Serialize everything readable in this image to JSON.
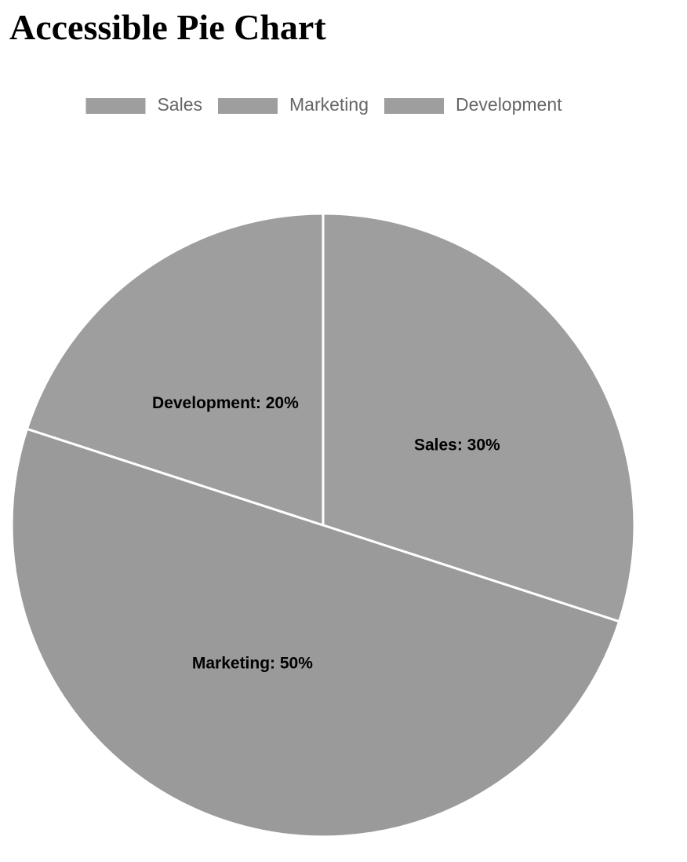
{
  "page": {
    "title": "Accessible Pie Chart"
  },
  "chart_data": {
    "type": "pie",
    "categories": [
      "Sales",
      "Marketing",
      "Development"
    ],
    "values": [
      30,
      50,
      20
    ],
    "labels": [
      "Sales: 30%",
      "Marketing: 50%",
      "Development: 20%"
    ],
    "colors": [
      "#9e9e9e",
      "#9a9a9a",
      "#9e9e9e"
    ],
    "border_color": "#ffffff",
    "legend_color": "#9e9e9e",
    "legend_text_color": "#666666",
    "legend_position": "top",
    "start_angle": "top",
    "direction": "clockwise"
  }
}
